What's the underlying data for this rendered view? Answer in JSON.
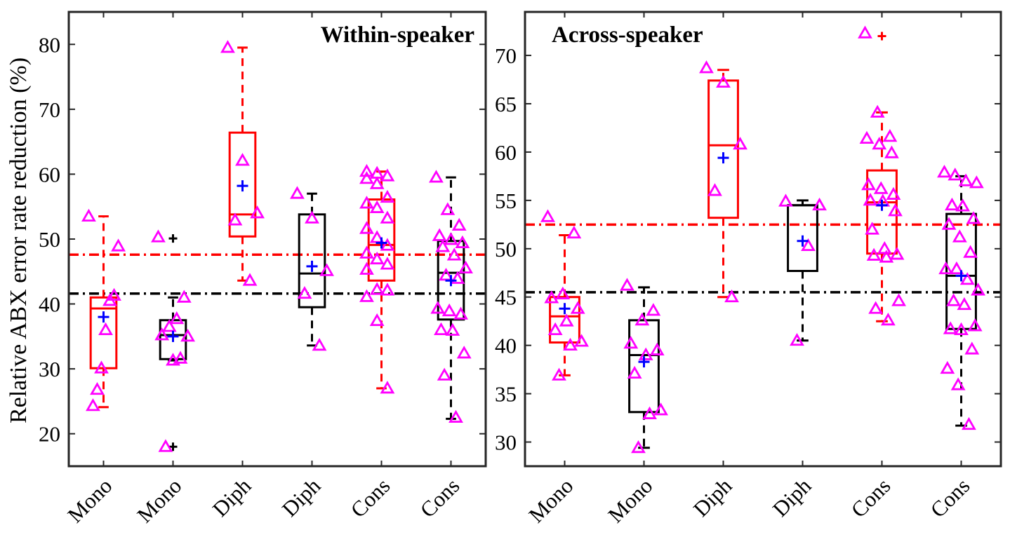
{
  "figure": {
    "ylabel": "Relative  ABX error rate reduction (%)"
  },
  "chart_data": [
    {
      "type": "box",
      "title": "Within-speaker",
      "xlabel": "",
      "ylabel": "Relative  ABX error rate reduction (%)",
      "categories": [
        "Mono",
        "Mono",
        "Diph",
        "Diph",
        "Cons",
        "Cons"
      ],
      "ylim": [
        15,
        85
      ],
      "yticks": [
        20,
        30,
        40,
        50,
        60,
        70,
        80
      ],
      "grid": false,
      "reference_lines": [
        {
          "color": "#ff0000",
          "value": 47.6
        },
        {
          "color": "#000000",
          "value": 41.6
        }
      ],
      "boxes": [
        {
          "category": "Mono",
          "color": "#ff0000",
          "q1": 30.1,
          "median": 39.3,
          "q3": 41.0,
          "whisker_low": 24.1,
          "whisker_high": 53.5,
          "mean": 38.0,
          "outliers": [],
          "points": [
            53.5,
            48.9,
            41.3,
            40.5,
            36.0,
            30.1,
            26.8,
            24.3
          ]
        },
        {
          "category": "Mono",
          "color": "#000000",
          "q1": 31.5,
          "median": 35.2,
          "q3": 37.5,
          "whisker_low": 31.3,
          "whisker_high": 41.0,
          "mean": 35.0,
          "outliers": [
            50.1,
            18.0
          ],
          "points": [
            50.3,
            41.0,
            37.7,
            36.5,
            35.2,
            35.0,
            31.6,
            31.3,
            18.0
          ]
        },
        {
          "category": "Diph",
          "color": "#ff0000",
          "q1": 50.4,
          "median": 53.8,
          "q3": 66.4,
          "whisker_low": 43.6,
          "whisker_high": 79.5,
          "mean": 58.2,
          "outliers": [],
          "points": [
            79.5,
            62.1,
            54.0,
            52.9,
            43.6
          ]
        },
        {
          "category": "Diph",
          "color": "#000000",
          "q1": 39.5,
          "median": 44.7,
          "q3": 53.8,
          "whisker_low": 33.6,
          "whisker_high": 57.0,
          "mean": 45.8,
          "outliers": [],
          "points": [
            57.0,
            53.2,
            45.1,
            41.6,
            33.6
          ]
        },
        {
          "category": "Cons",
          "color": "#ff0000",
          "q1": 43.6,
          "median": 49.1,
          "q3": 56.1,
          "whisker_low": 27.0,
          "whisker_high": 60.4,
          "mean": 49.4,
          "outliers": [],
          "points": [
            60.4,
            60.1,
            59.7,
            59.3,
            58.5,
            56.4,
            55.5,
            54.8,
            53.2,
            51.6,
            50.2,
            49.0,
            47.8,
            46.9,
            46.1,
            45.3,
            42.2,
            42.1,
            41.1,
            37.4,
            27.0
          ]
        },
        {
          "category": "Cons",
          "color": "#000000",
          "q1": 37.6,
          "median": 44.8,
          "q3": 49.7,
          "whisker_low": 22.3,
          "whisker_high": 59.5,
          "mean": 43.6,
          "outliers": [],
          "points": [
            59.5,
            54.5,
            52.1,
            50.5,
            49.9,
            49.4,
            48.8,
            47.5,
            45.5,
            44.4,
            43.9,
            39.3,
            38.9,
            38.4,
            36.0,
            35.9,
            32.4,
            29.0,
            22.5
          ]
        }
      ]
    },
    {
      "type": "box",
      "title": "Across-speaker",
      "xlabel": "",
      "ylabel": "",
      "categories": [
        "Mono",
        "Mono",
        "Diph",
        "Diph",
        "Cons",
        "Cons"
      ],
      "ylim": [
        27.5,
        74.5
      ],
      "yticks": [
        30,
        35,
        40,
        45,
        50,
        55,
        60,
        65,
        70
      ],
      "grid": false,
      "reference_lines": [
        {
          "color": "#ff0000",
          "value": 52.5
        },
        {
          "color": "#000000",
          "value": 45.5
        }
      ],
      "boxes": [
        {
          "category": "Mono",
          "color": "#ff0000",
          "q1": 40.3,
          "median": 43.0,
          "q3": 45.0,
          "whisker_low": 36.9,
          "whisker_high": 51.4,
          "mean": 43.8,
          "outliers": [],
          "points": [
            53.3,
            51.6,
            45.3,
            44.9,
            43.8,
            42.5,
            41.6,
            40.4,
            40.0,
            36.9
          ]
        },
        {
          "category": "Mono",
          "color": "#000000",
          "q1": 33.1,
          "median": 39.0,
          "q3": 42.6,
          "whisker_low": 29.4,
          "whisker_high": 46.0,
          "mean": 38.3,
          "outliers": [],
          "points": [
            46.2,
            43.6,
            42.6,
            40.2,
            39.5,
            39.0,
            37.1,
            33.3,
            32.9,
            29.4
          ]
        },
        {
          "category": "Diph",
          "color": "#ff0000",
          "q1": 53.2,
          "median": 60.7,
          "q3": 67.4,
          "whisker_low": 45.0,
          "whisker_high": 68.5,
          "mean": 59.4,
          "outliers": [],
          "points": [
            68.7,
            67.2,
            60.8,
            56.0,
            45.0
          ]
        },
        {
          "category": "Diph",
          "color": "#000000",
          "q1": 47.7,
          "median": 54.5,
          "q3": 54.5,
          "whisker_low": 40.5,
          "whisker_high": 55.0,
          "mean": 50.8,
          "outliers": [],
          "points": [
            54.9,
            54.5,
            50.3,
            40.5
          ]
        },
        {
          "category": "Cons",
          "color": "#ff0000",
          "q1": 49.5,
          "median": 54.8,
          "q3": 58.1,
          "whisker_low": 42.5,
          "whisker_high": 64.1,
          "mean": 54.5,
          "outliers": [
            72.0
          ],
          "points": [
            72.3,
            64.1,
            61.6,
            61.4,
            60.8,
            59.9,
            56.6,
            56.2,
            55.6,
            55.0,
            54.9,
            53.9,
            52.0,
            50.0,
            49.4,
            49.3,
            49.1,
            44.6,
            43.8,
            42.6
          ]
        },
        {
          "category": "Cons",
          "color": "#000000",
          "q1": 41.7,
          "median": 47.2,
          "q3": 53.6,
          "whisker_low": 31.7,
          "whisker_high": 57.5,
          "mean": 47.2,
          "outliers": [],
          "points": [
            57.9,
            57.6,
            57.0,
            56.8,
            54.5,
            54.4,
            53.1,
            52.5,
            51.2,
            49.6,
            47.9,
            47.9,
            46.8,
            45.7,
            44.6,
            44.2,
            42.0,
            41.7,
            41.6,
            39.6,
            37.6,
            35.9,
            31.8
          ]
        }
      ]
    }
  ]
}
